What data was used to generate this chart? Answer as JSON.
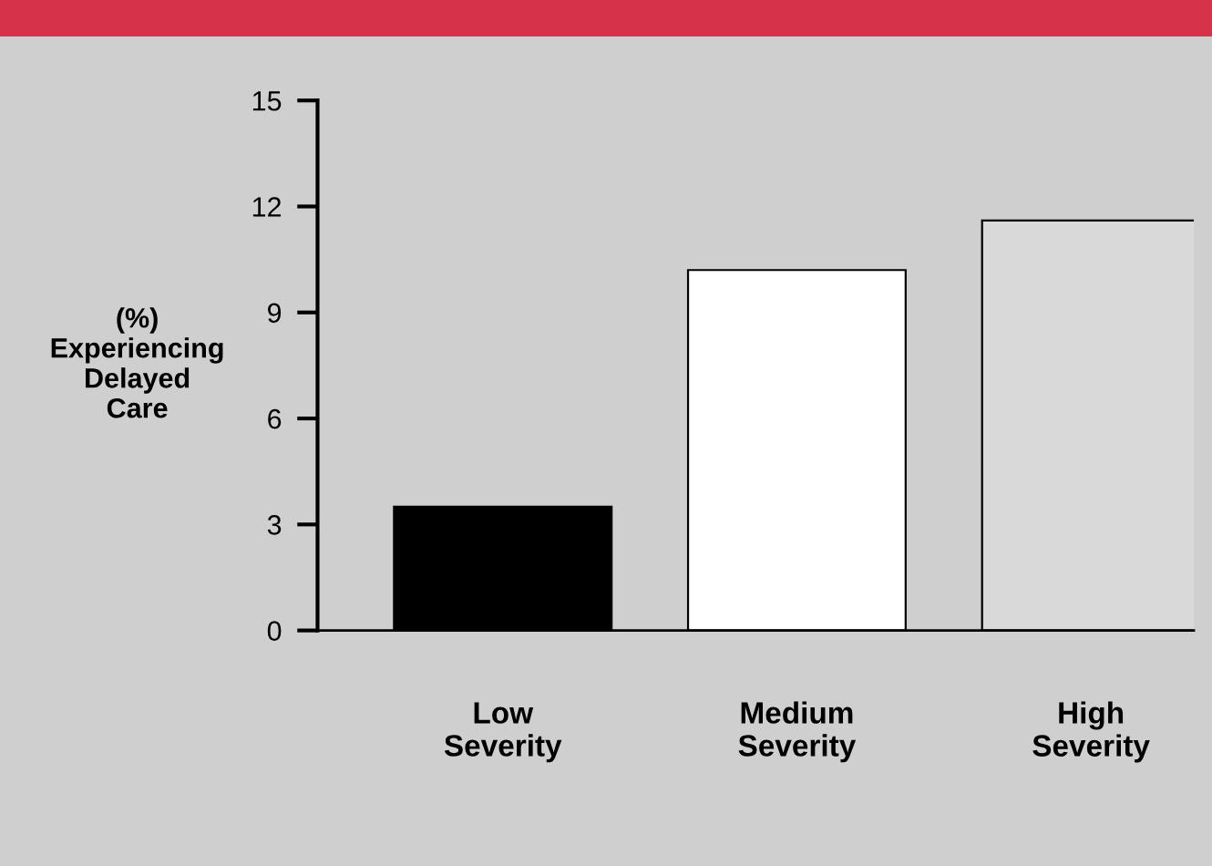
{
  "chart_data": {
    "type": "bar",
    "ylabel": "(%)\nExperiencing\nDelayed\nCare",
    "categories": [
      "Low\nSeverity",
      "Medium\nSeverity",
      "High\nSeverity"
    ],
    "values": [
      3.5,
      10.2,
      11.6
    ],
    "colors": [
      "#000000",
      "#ffffff",
      "#d9d9d9"
    ],
    "ylim": [
      0,
      15
    ],
    "yticks": [
      0,
      3,
      6,
      9,
      12,
      15
    ],
    "grid": false,
    "legend": false
  }
}
